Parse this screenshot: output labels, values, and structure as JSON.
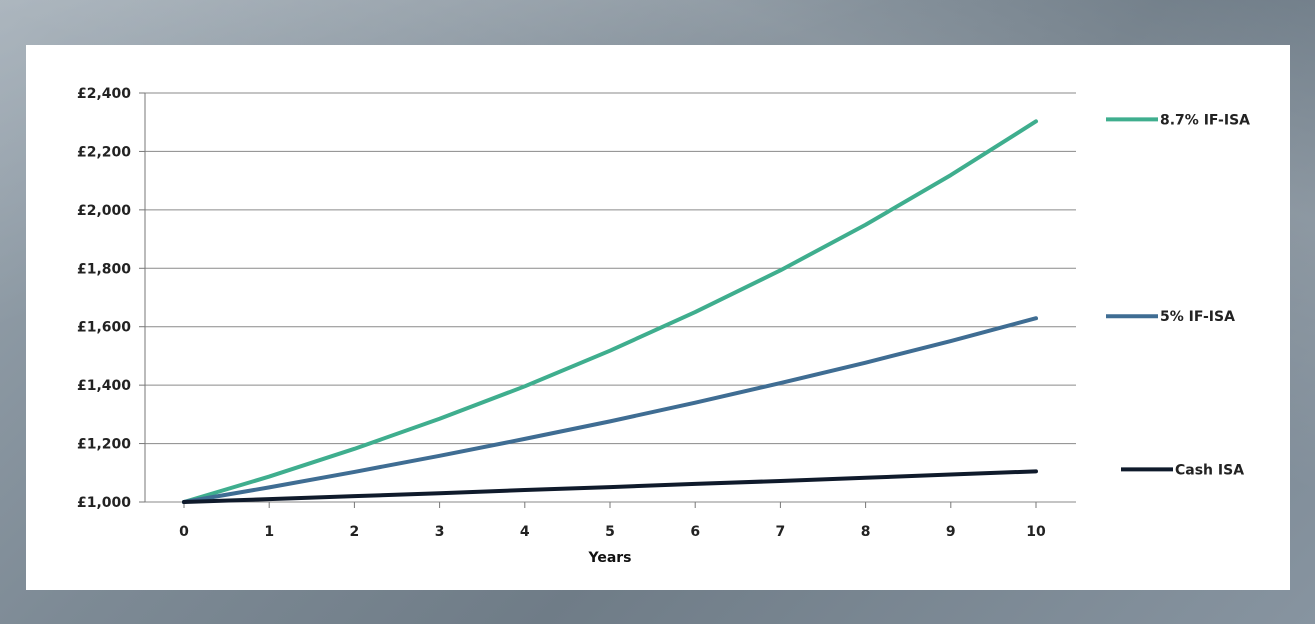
{
  "chart_data": {
    "type": "line",
    "title": "",
    "xlabel": "Years",
    "ylabel": "",
    "x": [
      0,
      1,
      2,
      3,
      4,
      5,
      6,
      7,
      8,
      9,
      10
    ],
    "xlim": [
      0,
      10
    ],
    "ylim": [
      1000,
      2400
    ],
    "yticks": [
      1000,
      1200,
      1400,
      1600,
      1800,
      2000,
      2200,
      2400
    ],
    "ytick_labels": [
      "£1,000",
      "£1,200",
      "£1,400",
      "£1,600",
      "£1,800",
      "£2,000",
      "£2,200",
      "£2,400"
    ],
    "xtick_labels": [
      "0",
      "1",
      "2",
      "3",
      "4",
      "5",
      "6",
      "7",
      "8",
      "9",
      "10"
    ],
    "grid": true,
    "legend_position": "right",
    "series": [
      {
        "name": "8.7% IF-ISA",
        "color": "#3fae8e",
        "values": [
          1000,
          1087,
          1182,
          1285,
          1396,
          1518,
          1650,
          1793,
          1949,
          2119,
          2303
        ]
      },
      {
        "name": "5% IF-ISA",
        "color": "#3f6d93",
        "values": [
          1000,
          1050,
          1103,
          1158,
          1216,
          1276,
          1340,
          1407,
          1477,
          1551,
          1629
        ]
      },
      {
        "name": "Cash ISA",
        "color": "#0f1a2b",
        "values": [
          1000,
          1010,
          1020,
          1030,
          1041,
          1051,
          1062,
          1072,
          1083,
          1094,
          1105
        ]
      }
    ]
  }
}
